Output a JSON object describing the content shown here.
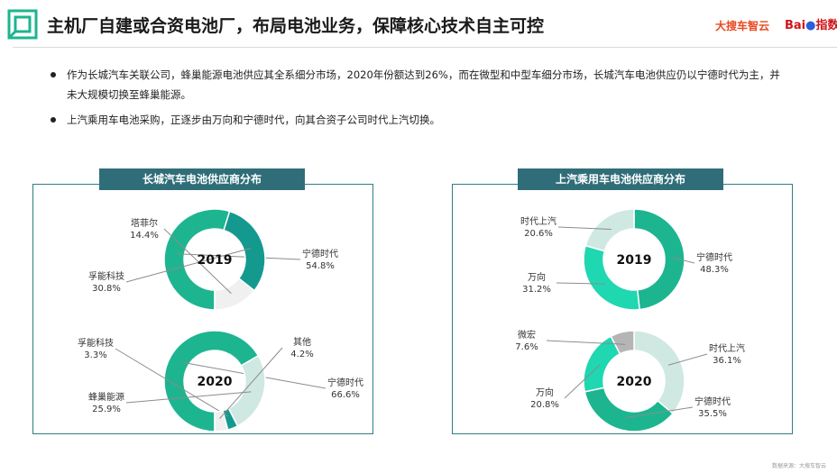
{
  "header": {
    "title": "主机厂自建或合资电池厂，布局电池业务，保障核心技术自主可控",
    "brand_left": "大搜车智云",
    "brand_right_prefix": "Bai",
    "brand_right_suffix": "指数"
  },
  "bullets": [
    "作为长城汽车关联公司，蜂巢能源电池供应其全系细分市场，2020年份额达到26%，而在微型和中型车细分市场，长城汽车电池供应仍以宁德时代为主，并未大规模切换至蜂巢能源。",
    "上汽乘用车电池采购，正逐步由万向和宁德时代，向其合资子公司时代上汽切换。"
  ],
  "footnote": "数据来源：大搜车智云",
  "colors": {
    "accent": "#2f6e78",
    "border": "#2f7f83",
    "catl": "#1db58f",
    "teal_dark": "#14998f",
    "mint": "#1fd7b0",
    "light_grey": "#f0f0f0",
    "light_mint": "#cfe8e2",
    "grey": "#b5b5b5",
    "leader": "#8c8c8c"
  },
  "chart_data": [
    {
      "type": "pie",
      "panel_title": "长城汽车电池供应商分布",
      "year": "2019",
      "slices": [
        {
          "label": "宁德时代",
          "value": 54.8,
          "value_text": "54.8%",
          "color": "#1db58f"
        },
        {
          "label": "孚能科技",
          "value": 30.8,
          "value_text": "30.8%",
          "color": "#14998f"
        },
        {
          "label": "塔菲尔",
          "value": 14.4,
          "value_text": "14.4%",
          "color": "#f0f0f0"
        }
      ]
    },
    {
      "type": "pie",
      "panel_title": "长城汽车电池供应商分布",
      "year": "2020",
      "slices": [
        {
          "label": "宁德时代",
          "value": 66.6,
          "value_text": "66.6%",
          "color": "#1db58f"
        },
        {
          "label": "蜂巢能源",
          "value": 25.9,
          "value_text": "25.9%",
          "color": "#cfe8e2"
        },
        {
          "label": "孚能科技",
          "value": 3.3,
          "value_text": "3.3%",
          "color": "#14998f"
        },
        {
          "label": "其他",
          "value": 4.2,
          "value_text": "4.2%",
          "color": "#f0f0f0"
        }
      ]
    },
    {
      "type": "pie",
      "panel_title": "上汽乘用车电池供应商分布",
      "year": "2019",
      "slices": [
        {
          "label": "宁德时代",
          "value": 48.3,
          "value_text": "48.3%",
          "color": "#1db58f"
        },
        {
          "label": "万向",
          "value": 31.2,
          "value_text": "31.2%",
          "color": "#1fd7b0"
        },
        {
          "label": "时代上汽",
          "value": 20.6,
          "value_text": "20.6%",
          "color": "#cfe8e2"
        }
      ]
    },
    {
      "type": "pie",
      "panel_title": "上汽乘用车电池供应商分布",
      "year": "2020",
      "slices": [
        {
          "label": "时代上汽",
          "value": 36.1,
          "value_text": "36.1%",
          "color": "#cfe8e2"
        },
        {
          "label": "宁德时代",
          "value": 35.5,
          "value_text": "35.5%",
          "color": "#1db58f"
        },
        {
          "label": "万向",
          "value": 20.8,
          "value_text": "20.8%",
          "color": "#1fd7b0"
        },
        {
          "label": "微宏",
          "value": 7.6,
          "value_text": "7.6%",
          "color": "#b5b5b5"
        }
      ]
    }
  ]
}
